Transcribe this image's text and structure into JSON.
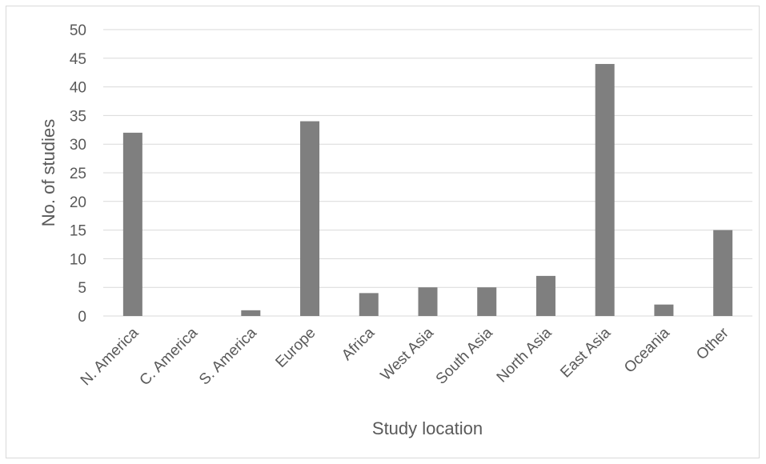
{
  "chart_data": {
    "type": "bar",
    "title": "",
    "xlabel": "Study location",
    "ylabel": "No. of studies",
    "categories": [
      "N. America",
      "C. America",
      "S. America",
      "Europe",
      "Africa",
      "West Asia",
      "South Asia",
      "North Asia",
      "East Asia",
      "Oceania",
      "Other"
    ],
    "values": [
      32,
      0,
      1,
      34,
      4,
      5,
      5,
      7,
      44,
      2,
      15
    ],
    "ylim": [
      0,
      50
    ],
    "yticks": [
      0,
      5,
      10,
      15,
      20,
      25,
      30,
      35,
      40,
      45,
      50
    ],
    "grid": true,
    "legend": "none",
    "bar_color": "#7f7f7f",
    "grid_color": "#d9d9d9"
  }
}
